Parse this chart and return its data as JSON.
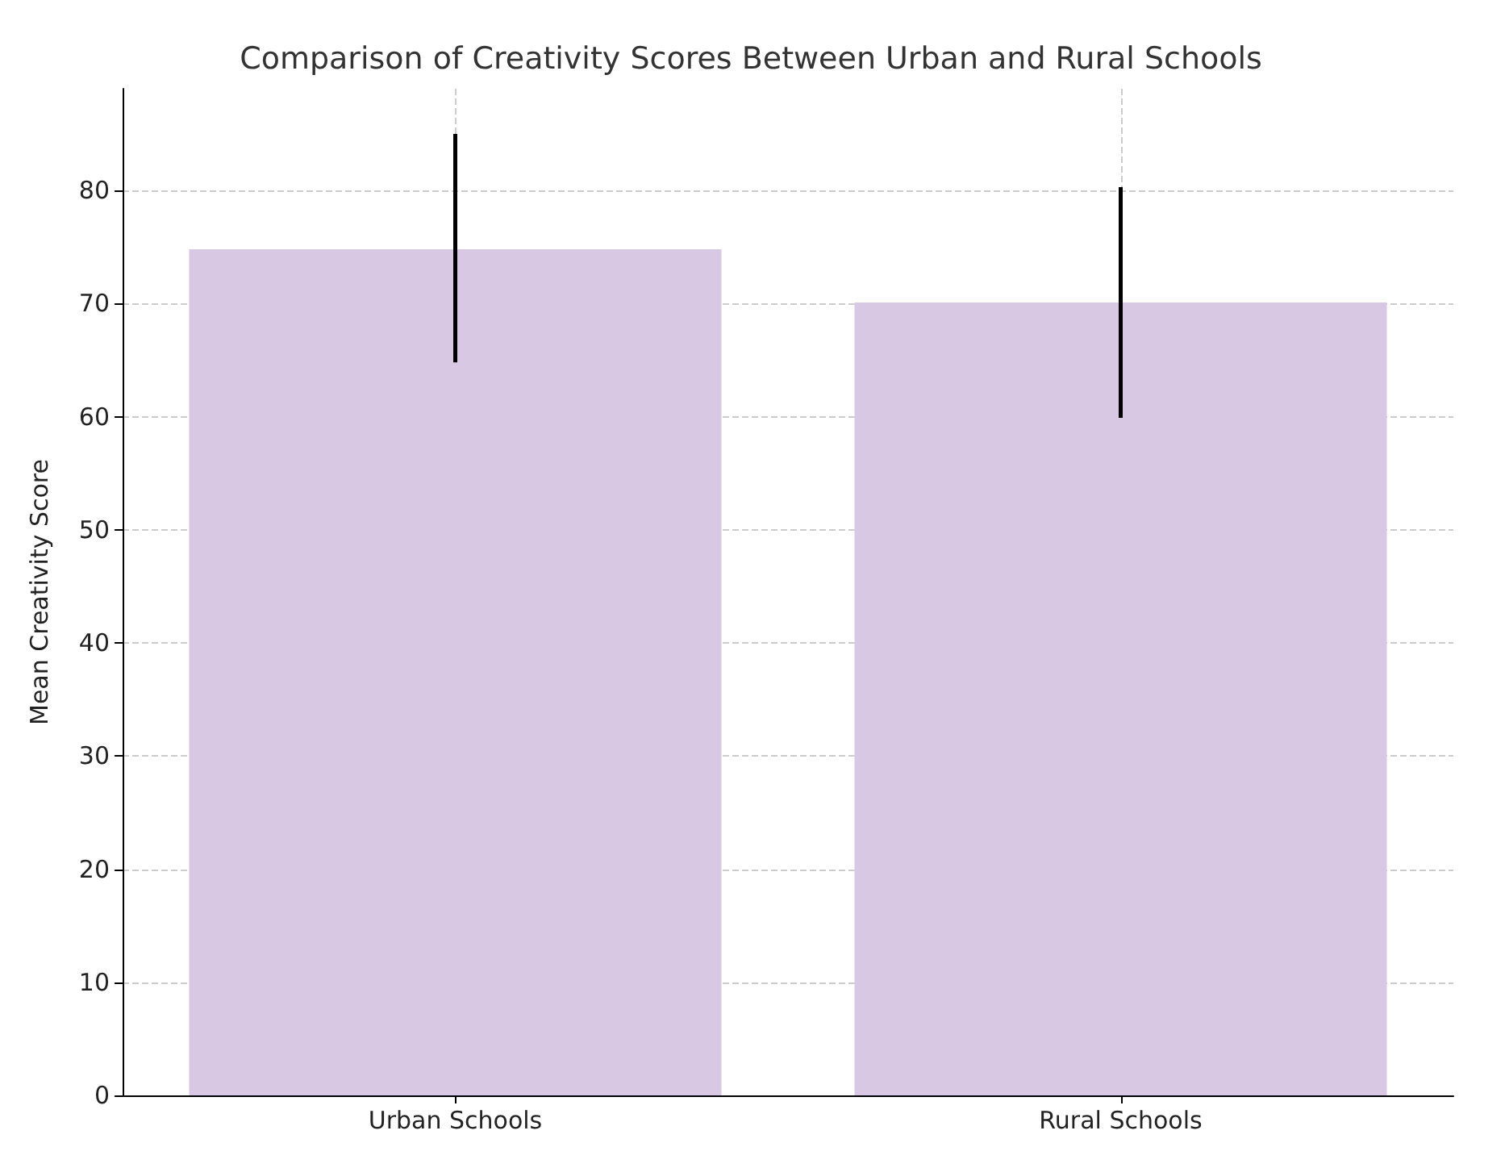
{
  "chart_data": {
    "type": "bar",
    "title": "Comparison of Creativity Scores Between Urban and Rural Schools",
    "ylabel": "Mean Creativity Score",
    "categories": [
      "Urban Schools",
      "Rural Schools"
    ],
    "values": [
      74.8,
      70.1
    ],
    "errors": [
      [
        64.8,
        85
      ],
      [
        59.9,
        80.3
      ]
    ],
    "color": "#d9c8e3",
    "ylim": [
      0,
      89
    ],
    "yticks": [
      0,
      10,
      20,
      30,
      40,
      50,
      60,
      70,
      80
    ],
    "grid": true
  }
}
